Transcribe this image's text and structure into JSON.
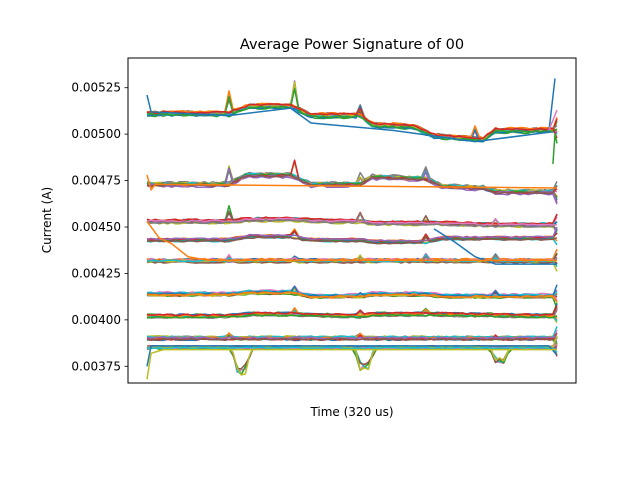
{
  "chart_data": {
    "type": "line",
    "title": "Average Power Signature of 00",
    "xlabel": "Time (320 us)",
    "ylabel": "Current (A)",
    "xlim": [
      0,
      100
    ],
    "ylim": [
      0.00366,
      0.00541
    ],
    "x_ticks_shown": false,
    "grid": false,
    "legend": "none",
    "y_ticks": [
      {
        "value": 0.00375,
        "label": "0.00375"
      },
      {
        "value": 0.004,
        "label": "0.00400"
      },
      {
        "value": 0.00425,
        "label": "0.00425"
      },
      {
        "value": 0.0045,
        "label": "0.00450"
      },
      {
        "value": 0.00475,
        "label": "0.00475"
      },
      {
        "value": 0.005,
        "label": "0.00500"
      },
      {
        "value": 0.00525,
        "label": "0.00525"
      }
    ],
    "palette": [
      "#1f77b4",
      "#ff7f0e",
      "#2ca02c",
      "#d62728",
      "#9467bd",
      "#8c564b",
      "#e377c2",
      "#7f7f7f",
      "#bcbd22",
      "#17becf"
    ],
    "bands": [
      {
        "level": 0.00511,
        "spread": 1.2e-05,
        "segments": [
          [
            0,
            0.0
          ],
          [
            20,
            0.0
          ],
          [
            25,
            4e-05
          ],
          [
            35,
            4e-05
          ],
          [
            40,
            -1e-05
          ],
          [
            52,
            -1e-05
          ],
          [
            55,
            -6e-05
          ],
          [
            65,
            -7e-05
          ],
          [
            70,
            -0.00012
          ],
          [
            82,
            -0.00014
          ],
          [
            85,
            -9e-05
          ],
          [
            100,
            -9e-05
          ]
        ],
        "spikes": [
          [
            20,
            0.00012
          ],
          [
            36,
            0.00018
          ],
          [
            52,
            6e-05
          ],
          [
            80,
            6e-05
          ]
        ],
        "count": 14
      },
      {
        "level": 0.00473,
        "spread": 1.2e-05,
        "segments": [
          [
            0,
            0.0
          ],
          [
            20,
            0.0
          ],
          [
            24,
            5e-05
          ],
          [
            35,
            5e-05
          ],
          [
            40,
            0.0
          ],
          [
            52,
            0.0
          ],
          [
            55,
            4e-05
          ],
          [
            68,
            3e-05
          ],
          [
            72,
            -1e-05
          ],
          [
            82,
            -2e-05
          ],
          [
            85,
            -4e-05
          ],
          [
            100,
            -4e-05
          ]
        ],
        "spikes": [
          [
            20,
            0.0001
          ],
          [
            36,
            0.0001
          ],
          [
            52,
            6e-05
          ],
          [
            68,
            6e-05
          ]
        ],
        "count": 12
      },
      {
        "level": 0.00453,
        "spread": 1e-05,
        "segments": [
          [
            0,
            0.0
          ],
          [
            20,
            0.0
          ],
          [
            25,
            1e-05
          ],
          [
            35,
            1e-05
          ],
          [
            45,
            0.0
          ],
          [
            52,
            0.0
          ],
          [
            55,
            -1e-05
          ],
          [
            70,
            -1e-05
          ],
          [
            85,
            -2e-05
          ],
          [
            100,
            -2e-05
          ]
        ],
        "spikes": [
          [
            20,
            8e-05
          ],
          [
            52,
            5e-05
          ],
          [
            68,
            5e-05
          ],
          [
            85,
            4e-05
          ]
        ],
        "count": 12
      },
      {
        "level": 0.00443,
        "spread": 8e-06,
        "segments": [
          [
            0,
            0.0
          ],
          [
            20,
            0.0
          ],
          [
            25,
            2e-05
          ],
          [
            35,
            2e-05
          ],
          [
            40,
            0.0
          ],
          [
            52,
            0.0
          ],
          [
            55,
            -1e-05
          ],
          [
            68,
            -1e-05
          ],
          [
            72,
            1e-05
          ],
          [
            100,
            1e-05
          ]
        ],
        "spikes": [
          [
            36,
            4e-05
          ],
          [
            68,
            4e-05
          ]
        ],
        "count": 8
      },
      {
        "level": 0.00432,
        "spread": 1e-05,
        "segments": [
          [
            0,
            0.0
          ],
          [
            100,
            0.0
          ]
        ],
        "spikes": [
          [
            20,
            3e-05
          ],
          [
            36,
            3e-05
          ],
          [
            52,
            3e-05
          ],
          [
            68,
            3e-05
          ],
          [
            85,
            3e-05
          ]
        ],
        "count": 14
      },
      {
        "level": 0.00414,
        "spread": 1e-05,
        "segments": [
          [
            0,
            0.0
          ],
          [
            20,
            0.0
          ],
          [
            25,
            1e-05
          ],
          [
            35,
            1e-05
          ],
          [
            40,
            -1e-05
          ],
          [
            52,
            -1e-05
          ],
          [
            55,
            0.0
          ],
          [
            68,
            0.0
          ],
          [
            72,
            -1e-05
          ],
          [
            100,
            -1e-05
          ]
        ],
        "spikes": [
          [
            36,
            4e-05
          ],
          [
            52,
            3e-05
          ],
          [
            85,
            3e-05
          ]
        ],
        "count": 12
      },
      {
        "level": 0.00402,
        "spread": 1e-05,
        "segments": [
          [
            0,
            0.0
          ],
          [
            20,
            0.0
          ],
          [
            25,
            1e-05
          ],
          [
            35,
            1e-05
          ],
          [
            52,
            0.0
          ],
          [
            55,
            1e-05
          ],
          [
            70,
            1e-05
          ],
          [
            100,
            0.0
          ]
        ],
        "spikes": [
          [
            36,
            4e-05
          ],
          [
            52,
            3e-05
          ],
          [
            68,
            3e-05
          ]
        ],
        "count": 12
      },
      {
        "level": 0.0039,
        "spread": 1e-05,
        "segments": [
          [
            0,
            0.0
          ],
          [
            100,
            0.0
          ]
        ],
        "spikes": [
          [
            20,
            3e-05
          ],
          [
            52,
            3e-05
          ],
          [
            85,
            3e-05
          ]
        ],
        "count": 12
      },
      {
        "level": 0.00385,
        "spread": 8e-06,
        "segments": [
          [
            0,
            0.0
          ],
          [
            100,
            0.0
          ]
        ],
        "dips": [
          [
            22,
            -0.00015
          ],
          [
            52,
            -0.00013
          ],
          [
            85,
            -9e-05
          ]
        ],
        "count": 14
      }
    ],
    "outliers": [
      {
        "color": "#1f77b4",
        "points": [
          [
            0,
            0.00521
          ],
          [
            1,
            0.00512
          ],
          [
            20,
            0.0051
          ],
          [
            35,
            0.00514
          ],
          [
            40,
            0.00506
          ],
          [
            60,
            0.00502
          ],
          [
            80,
            0.00496
          ],
          [
            98,
            0.00501
          ],
          [
            99.5,
            0.0053
          ]
        ]
      },
      {
        "color": "#1f77b4",
        "points": [
          [
            0,
            0.00375
          ],
          [
            1,
            0.00386
          ],
          [
            30,
            0.00386
          ],
          [
            60,
            0.00386
          ],
          [
            98,
            0.00386
          ],
          [
            100,
            0.00381
          ]
        ]
      },
      {
        "color": "#1f77b4",
        "points": [
          [
            70,
            0.00449
          ],
          [
            75,
            0.00442
          ],
          [
            80,
            0.00434
          ],
          [
            85,
            0.0043
          ],
          [
            90,
            0.0043
          ],
          [
            100,
            0.0043
          ]
        ]
      },
      {
        "color": "#ff7f0e",
        "points": [
          [
            0,
            0.00453
          ],
          [
            3,
            0.00444
          ],
          [
            6,
            0.00441
          ],
          [
            10,
            0.00434
          ],
          [
            15,
            0.00432
          ],
          [
            30,
            0.00432
          ],
          [
            60,
            0.00432
          ],
          [
            100,
            0.00432
          ]
        ]
      },
      {
        "color": "#ff7f0e",
        "points": [
          [
            0,
            0.00478
          ],
          [
            1,
            0.0047
          ],
          [
            2,
            0.00473
          ],
          [
            100,
            0.00471
          ]
        ]
      },
      {
        "color": "#bcbd22",
        "points": [
          [
            0,
            0.00368
          ],
          [
            1,
            0.00382
          ],
          [
            4,
            0.00384
          ],
          [
            100,
            0.00384
          ]
        ]
      },
      {
        "color": "#2ca02c",
        "points": [
          [
            99,
            0.00484
          ],
          [
            99.5,
            0.005
          ],
          [
            100,
            0.00495
          ]
        ]
      },
      {
        "color": "#e377c2",
        "points": [
          [
            98,
            0.00502
          ],
          [
            100,
            0.00513
          ]
        ]
      }
    ]
  }
}
